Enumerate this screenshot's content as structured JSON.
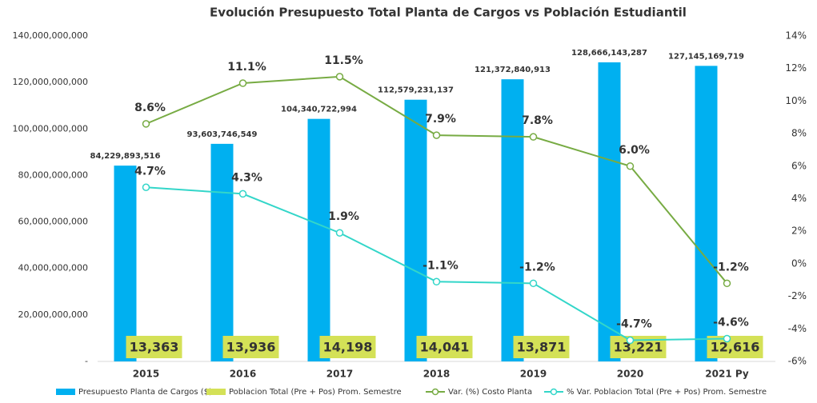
{
  "chart_data": {
    "type": "bar-line",
    "title": "Evolución Presupuesto Total Planta de Cargos vs Población Estudiantil",
    "categories": [
      "2015",
      "2016",
      "2017",
      "2018",
      "2019",
      "2020",
      "2021 Py"
    ],
    "ylim": [
      0,
      140000000000
    ],
    "yticks": [
      {
        "value": 0,
        "label": "-"
      },
      {
        "value": 20000000000,
        "label": "20,000,000,000"
      },
      {
        "value": 40000000000,
        "label": "40,000,000,000"
      },
      {
        "value": 60000000000,
        "label": "60,000,000,000"
      },
      {
        "value": 80000000000,
        "label": "80,000,000,000"
      },
      {
        "value": 100000000000,
        "label": "100,000,000,000"
      },
      {
        "value": 120000000000,
        "label": "120,000,000,000"
      },
      {
        "value": 140000000000,
        "label": "140,000,000,000"
      }
    ],
    "y2lim": [
      -6,
      14
    ],
    "y2ticks": [
      {
        "value": -6,
        "label": "-6%"
      },
      {
        "value": -4,
        "label": "-4%"
      },
      {
        "value": -2,
        "label": "-2%"
      },
      {
        "value": 0,
        "label": "0%"
      },
      {
        "value": 2,
        "label": "2%"
      },
      {
        "value": 4,
        "label": "4%"
      },
      {
        "value": 6,
        "label": "6%"
      },
      {
        "value": 8,
        "label": "8%"
      },
      {
        "value": 10,
        "label": "10%"
      },
      {
        "value": 12,
        "label": "12%"
      },
      {
        "value": 14,
        "label": "14%"
      }
    ],
    "series": [
      {
        "name": "Presupuesto Planta de Cargos ($)",
        "type": "bar",
        "color": "#00b0f0",
        "values": [
          84229893516,
          93603746549,
          104340722994,
          112579231137,
          121372840913,
          128666143287,
          127145169719
        ],
        "value_labels": [
          "84,229,893,516",
          "93,603,746,549",
          "104,340,722,994",
          "112,579,231,137",
          "121,372,840,913",
          "128,666,143,287",
          "127,145,169,719"
        ]
      },
      {
        "name": "Poblacion Total (Pre + Pos) Prom. Semestre",
        "type": "bar",
        "color": "#d4e157",
        "values": [
          13363,
          13936,
          14198,
          14041,
          13871,
          13221,
          12616
        ],
        "value_labels": [
          "13,363",
          "13,936",
          "14,198",
          "14,041",
          "13,871",
          "13,221",
          "12,616"
        ]
      },
      {
        "name": "Var. (%) Costo Planta",
        "type": "line",
        "axis": "y2",
        "color": "#77ab43",
        "values": [
          8.6,
          11.1,
          11.5,
          7.9,
          7.8,
          6.0,
          -1.2
        ],
        "value_labels": [
          "8.6%",
          "11.1%",
          "11.5%",
          "7.9%",
          "7.8%",
          "6.0%",
          "-1.2%"
        ]
      },
      {
        "name": "% Var. Poblacion Total (Pre + Pos) Prom. Semestre",
        "type": "line",
        "axis": "y2",
        "color": "#33d6c9",
        "values": [
          4.7,
          4.3,
          1.9,
          -1.1,
          -1.2,
          -4.7,
          -4.6
        ],
        "value_labels": [
          "4.7%",
          "4.3%",
          "1.9%",
          "-1.1%",
          "-1.2%",
          "-4.7%",
          "-4.6%"
        ]
      }
    ]
  }
}
